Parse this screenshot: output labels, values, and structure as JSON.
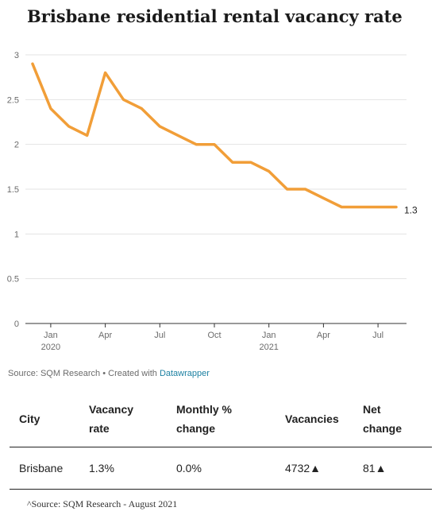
{
  "title": "Brisbane residential rental vacancy rate",
  "chart_data": {
    "type": "line",
    "title": "Brisbane residential rental vacancy rate",
    "xlabel": "",
    "ylabel": "",
    "ylim": [
      0,
      3
    ],
    "y_ticks": [
      "0",
      "0.5",
      "1",
      "1.5",
      "2",
      "2.5",
      "3"
    ],
    "x_ticks": [
      {
        "label": "Jan",
        "sub": "2020",
        "index": 1
      },
      {
        "label": "Apr",
        "sub": "",
        "index": 4
      },
      {
        "label": "Jul",
        "sub": "",
        "index": 7
      },
      {
        "label": "Oct",
        "sub": "",
        "index": 10
      },
      {
        "label": "Jan",
        "sub": "2021",
        "index": 13
      },
      {
        "label": "Apr",
        "sub": "",
        "index": 16
      },
      {
        "label": "Jul",
        "sub": "",
        "index": 19
      }
    ],
    "x": [
      "2019-12",
      "2020-01",
      "2020-02",
      "2020-03",
      "2020-04",
      "2020-05",
      "2020-06",
      "2020-07",
      "2020-08",
      "2020-09",
      "2020-10",
      "2020-11",
      "2020-12",
      "2021-01",
      "2021-02",
      "2021-03",
      "2021-04",
      "2021-05",
      "2021-06",
      "2021-07",
      "2021-08"
    ],
    "series": [
      {
        "values": [
          2.9,
          2.4,
          2.2,
          2.1,
          2.8,
          2.5,
          2.4,
          2.2,
          2.1,
          2.0,
          2.0,
          1.8,
          1.8,
          1.7,
          1.5,
          1.5,
          1.4,
          1.3,
          1.3,
          1.3,
          1.3
        ],
        "color": "#f19e38"
      }
    ],
    "end_label": "1.3",
    "grid": true
  },
  "source": {
    "text": "Source: SQM Research • Created with ",
    "link": "Datawrapper"
  },
  "table": {
    "headers": {
      "city": "City",
      "vacancy_rate_1": "Vacancy",
      "vacancy_rate_2": "rate",
      "monthly_1": "Monthly %",
      "monthly_2": "change",
      "vacancies": "Vacancies",
      "net_1": "Net",
      "net_2": "change"
    },
    "row": {
      "city": "Brisbane",
      "vacancy_rate": "1.3%",
      "monthly": "0.0%",
      "vacancies": "4732▲",
      "net": "81▲"
    }
  },
  "footnote": "^Source: SQM Research - August 2021"
}
